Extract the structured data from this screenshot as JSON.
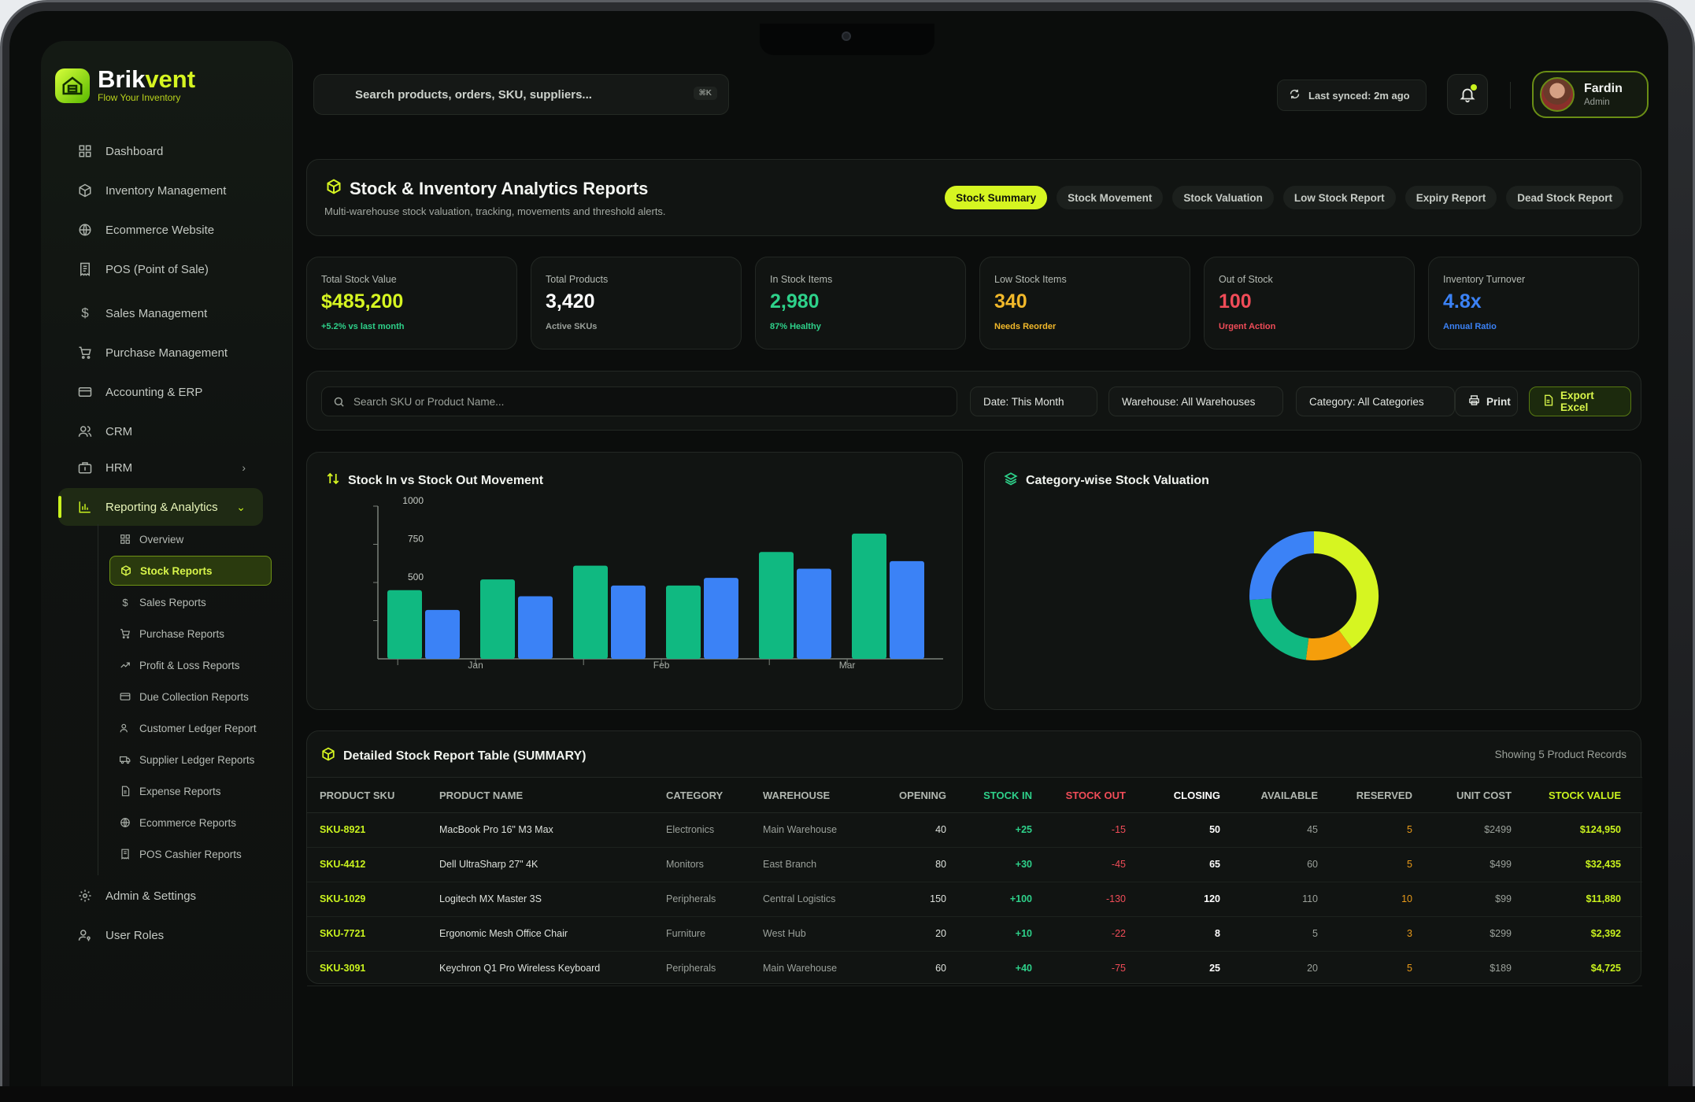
{
  "brand": {
    "name_part1": "Brik",
    "name_part2": "vent",
    "tagline": "Flow Your Inventory"
  },
  "sidebar": {
    "items": [
      {
        "label": "Dashboard",
        "icon": "dashboard-icon"
      },
      {
        "label": "Inventory Management",
        "icon": "box-icon"
      },
      {
        "label": "Ecommerce Website",
        "icon": "globe-icon"
      },
      {
        "label": "POS (Point of Sale)",
        "icon": "receipt-icon"
      },
      {
        "label": "Sales Management",
        "icon": "dollar-icon"
      },
      {
        "label": "Purchase Management",
        "icon": "cart-icon"
      },
      {
        "label": "Accounting & ERP",
        "icon": "card-icon"
      },
      {
        "label": "CRM",
        "icon": "users-icon"
      },
      {
        "label": "HRM",
        "icon": "briefcase-icon"
      },
      {
        "label": "Reporting & Analytics",
        "icon": "bar-chart-icon"
      },
      {
        "label": "Admin & Settings",
        "icon": "gear-icon"
      },
      {
        "label": "User Roles",
        "icon": "user-key-icon"
      }
    ],
    "sub_items": [
      {
        "label": "Overview"
      },
      {
        "label": "Stock Reports"
      },
      {
        "label": "Sales Reports"
      },
      {
        "label": "Purchase Reports"
      },
      {
        "label": "Profit & Loss Reports"
      },
      {
        "label": "Due Collection Reports"
      },
      {
        "label": "Customer Ledger Report"
      },
      {
        "label": "Supplier Ledger Reports"
      },
      {
        "label": "Expense Reports"
      },
      {
        "label": "Ecommerce Reports"
      },
      {
        "label": "POS Cashier Reports"
      }
    ]
  },
  "topbar": {
    "search_placeholder": "Search products, orders, SKU, suppliers...",
    "search_shortcut": "⌘K",
    "sync_text": "Last synced: 2m ago",
    "user_name": "Fardin",
    "user_role": "Admin"
  },
  "header": {
    "title": "Stock & Inventory Analytics Reports",
    "subtitle": "Multi-warehouse stock valuation, tracking, movements and threshold alerts.",
    "tabs": [
      "Stock Summary",
      "Stock Movement",
      "Stock Valuation",
      "Low Stock Report",
      "Expiry Report",
      "Dead Stock Report"
    ]
  },
  "kpis": [
    {
      "label": "Total Stock Value",
      "value": "$485,200",
      "note": "+5.2% vs last month",
      "color": "#d6f521",
      "note_color": "#2ed18a"
    },
    {
      "label": "Total Products",
      "value": "3,420",
      "note": "Active SKUs",
      "color": "#ffffff",
      "note_color": "#9aa09a"
    },
    {
      "label": "In Stock Items",
      "value": "2,980",
      "note": "87% Healthy",
      "color": "#2ed18a",
      "note_color": "#2ed18a"
    },
    {
      "label": "Low Stock Items",
      "value": "340",
      "note": "Needs Reorder",
      "color": "#f1b82a",
      "note_color": "#f1b82a"
    },
    {
      "label": "Out of Stock",
      "value": "100",
      "note": "Urgent Action",
      "color": "#f04c58",
      "note_color": "#f04c58"
    },
    {
      "label": "Inventory Turnover",
      "value": "4.8x",
      "note": "Annual Ratio",
      "color": "#3b82f6",
      "note_color": "#3b82f6"
    }
  ],
  "filters": {
    "search_placeholder": "Search SKU or Product Name...",
    "date": "Date: This Month",
    "warehouse": "Warehouse: All Warehouses",
    "category": "Category: All Categories",
    "print": "Print",
    "export": "Export Excel"
  },
  "bar_chart": {
    "title": "Stock In vs Stock Out Movement"
  },
  "donut_chart": {
    "title": "Category-wise Stock Valuation"
  },
  "chart_data": [
    {
      "type": "bar",
      "title": "Stock In vs Stock Out Movement",
      "x_tick_labels": [
        "Jan",
        "Feb",
        "Mar"
      ],
      "y_tick_labels": [
        "500",
        "750",
        "1000"
      ],
      "ylim": [
        0,
        1000
      ],
      "groups": 6,
      "series": [
        {
          "color": "#10b981",
          "values": [
            450,
            520,
            610,
            480,
            700,
            820
          ]
        },
        {
          "color": "#3b82f6",
          "values": [
            320,
            410,
            480,
            530,
            590,
            640
          ]
        }
      ],
      "grid": false
    },
    {
      "type": "pie",
      "title": "Category-wise Stock Valuation",
      "donut": true,
      "slices": [
        {
          "value": 40,
          "color": "#d6f521"
        },
        {
          "value": 12,
          "color": "#f59e0b"
        },
        {
          "value": 22,
          "color": "#10b981"
        },
        {
          "value": 26,
          "color": "#3b82f6"
        }
      ]
    }
  ],
  "table": {
    "title": "Detailed Stock Report Table (SUMMARY)",
    "count_text": "Showing 5 Product Records",
    "columns": [
      "PRODUCT SKU",
      "PRODUCT NAME",
      "CATEGORY",
      "WAREHOUSE",
      "OPENING",
      "STOCK IN",
      "STOCK OUT",
      "CLOSING",
      "AVAILABLE",
      "RESERVED",
      "UNIT COST",
      "STOCK VALUE"
    ],
    "rows": [
      [
        "SKU-8921",
        "MacBook Pro 16\" M3 Max",
        "Electronics",
        "Main Warehouse",
        "40",
        "+25",
        "-15",
        "50",
        "45",
        "5",
        "$2499",
        "$124,950"
      ],
      [
        "SKU-4412",
        "Dell UltraSharp 27\" 4K",
        "Monitors",
        "East Branch",
        "80",
        "+30",
        "-45",
        "65",
        "60",
        "5",
        "$499",
        "$32,435"
      ],
      [
        "SKU-1029",
        "Logitech MX Master 3S",
        "Peripherals",
        "Central Logistics",
        "150",
        "+100",
        "-130",
        "120",
        "110",
        "10",
        "$99",
        "$11,880"
      ],
      [
        "SKU-7721",
        "Ergonomic Mesh Office Chair",
        "Furniture",
        "West Hub",
        "20",
        "+10",
        "-22",
        "8",
        "5",
        "3",
        "$299",
        "$2,392"
      ],
      [
        "SKU-3091",
        "Keychron Q1 Pro Wireless Keyboard",
        "Peripherals",
        "Main Warehouse",
        "60",
        "+40",
        "-75",
        "25",
        "20",
        "5",
        "$189",
        "$4,725"
      ]
    ]
  }
}
